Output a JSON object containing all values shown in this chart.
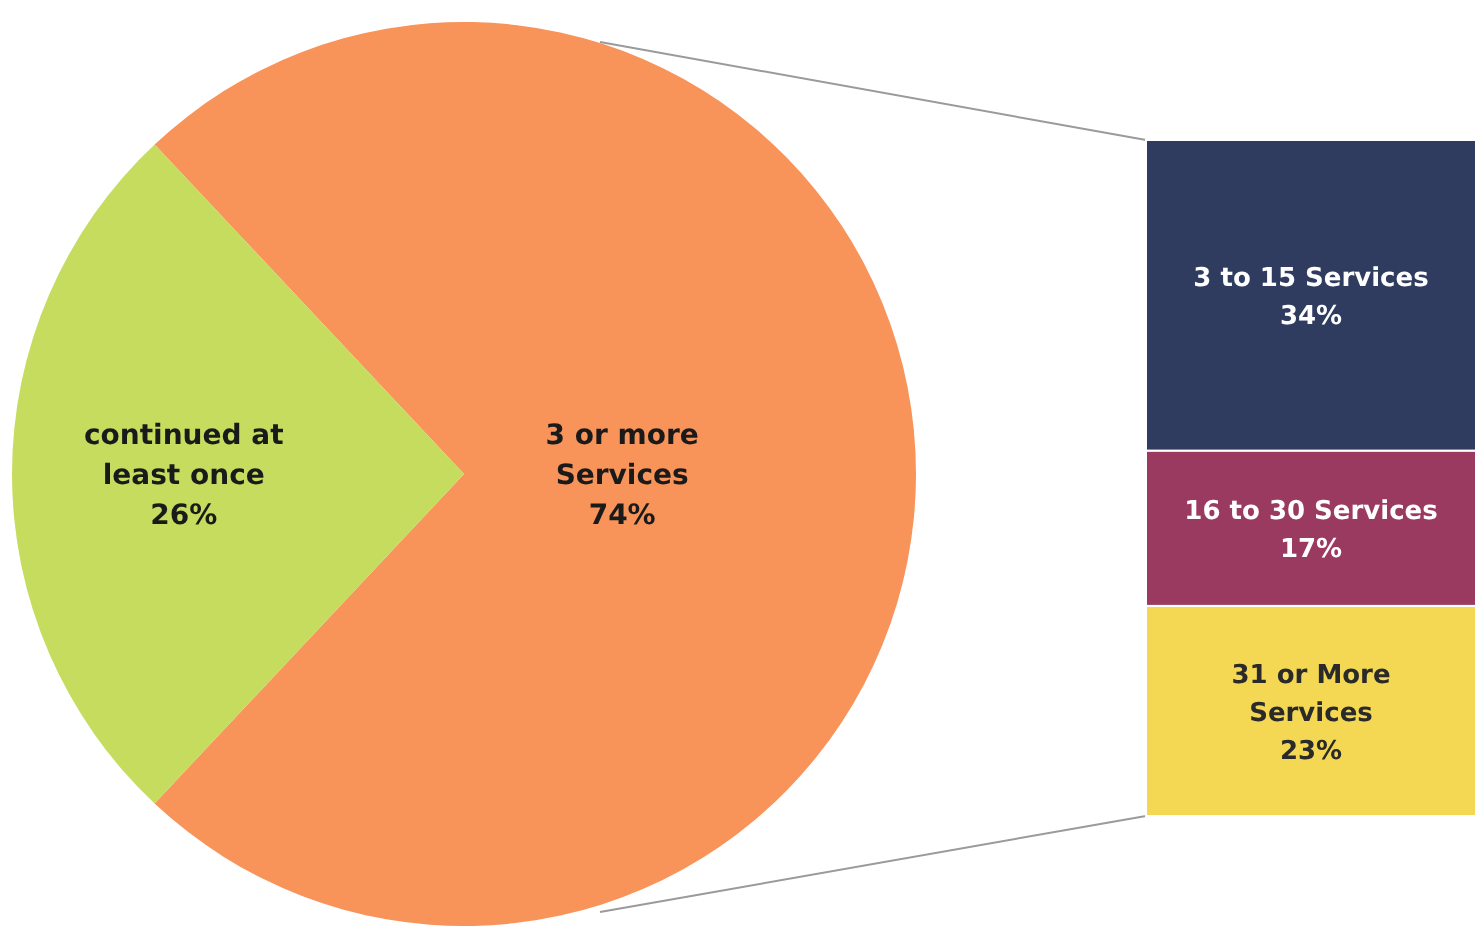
{
  "chart_data": [
    {
      "type": "pie",
      "categories": [
        "3 or more Services",
        "continued at least once"
      ],
      "values": [
        74,
        26
      ],
      "colors": [
        "#f8935a",
        "#c5dc5e"
      ],
      "value_labels": [
        "74%",
        "26%"
      ]
    },
    {
      "type": "bar",
      "stacked": true,
      "categories": [
        null
      ],
      "series": [
        {
          "name": "31 or More Services",
          "color": "#f4d853",
          "values": [
            23
          ],
          "value_labels": [
            "23%"
          ]
        },
        {
          "name": "16 to 30 Services",
          "color": "#9b3a60",
          "values": [
            17
          ],
          "value_labels": [
            "17%"
          ]
        },
        {
          "name": "3 to 15 Services",
          "color": "#2f3b5f",
          "values": [
            34
          ],
          "value_labels": [
            "34%"
          ]
        }
      ]
    }
  ]
}
